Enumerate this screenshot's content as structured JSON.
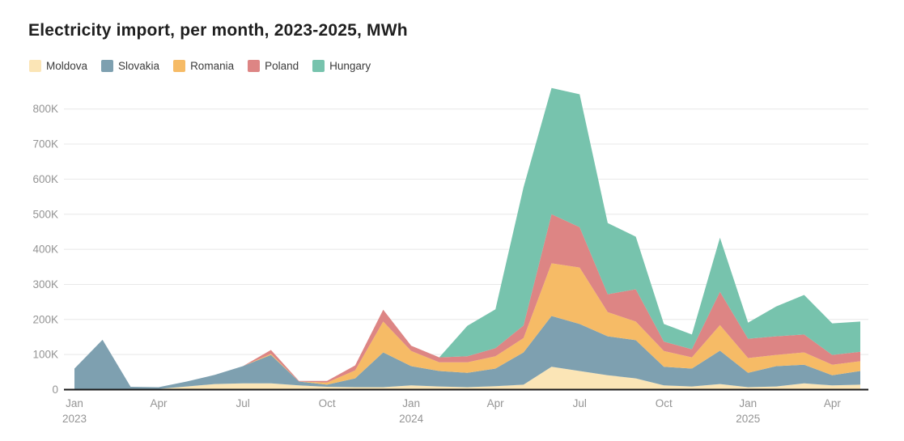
{
  "page": {
    "title": "Electricity import, per month, 2023-2025, MWh"
  },
  "legend": {
    "items": [
      {
        "label": "Moldova",
        "color": "#FBE5B6"
      },
      {
        "label": "Slovakia",
        "color": "#7EA0B0"
      },
      {
        "label": "Romania",
        "color": "#F6BB66"
      },
      {
        "label": "Poland",
        "color": "#DD8584"
      },
      {
        "label": "Hungary",
        "color": "#77C3AD"
      }
    ]
  },
  "chart_data": {
    "type": "area",
    "stacked": true,
    "title": "Electricity import, per month, 2023-2025, MWh",
    "unit": "MWh",
    "values_unit": "thousand MWh (K)",
    "xlabel": "",
    "ylabel": "",
    "grid": true,
    "legend_position": "top-left",
    "ylim": [
      0,
      800
    ],
    "x": [
      "Jan 2023",
      "Feb 2023",
      "Mar 2023",
      "Apr 2023",
      "May 2023",
      "Jun 2023",
      "Jul 2023",
      "Aug 2023",
      "Sep 2023",
      "Oct 2023",
      "Nov 2023",
      "Dec 2023",
      "Jan 2024",
      "Feb 2024",
      "Mar 2024",
      "Apr 2024",
      "May 2024",
      "Jun 2024",
      "Jul 2024",
      "Aug 2024",
      "Sep 2024",
      "Oct 2024",
      "Nov 2024",
      "Dec 2024",
      "Jan 2025",
      "Feb 2025",
      "Mar 2025",
      "Apr 2025",
      "May 2025"
    ],
    "x_ticks": [
      {
        "i": 0,
        "month": "Jan",
        "year": "2023"
      },
      {
        "i": 3,
        "month": "Apr"
      },
      {
        "i": 6,
        "month": "Jul"
      },
      {
        "i": 9,
        "month": "Oct"
      },
      {
        "i": 12,
        "month": "Jan",
        "year": "2024"
      },
      {
        "i": 15,
        "month": "Apr"
      },
      {
        "i": 18,
        "month": "Jul"
      },
      {
        "i": 21,
        "month": "Oct"
      },
      {
        "i": 24,
        "month": "Jan",
        "year": "2025"
      },
      {
        "i": 27,
        "month": "Apr"
      }
    ],
    "y_ticks": [
      {
        "v": 0,
        "label": "0"
      },
      {
        "v": 100,
        "label": "100K"
      },
      {
        "v": 200,
        "label": "200K"
      },
      {
        "v": 300,
        "label": "300K"
      },
      {
        "v": 400,
        "label": "400K"
      },
      {
        "v": 500,
        "label": "500K"
      },
      {
        "v": 600,
        "label": "600K"
      },
      {
        "v": 700,
        "label": "700K"
      },
      {
        "v": 800,
        "label": "800K"
      }
    ],
    "series": [
      {
        "name": "Moldova",
        "color": "#FBE5B6",
        "values": [
          1,
          2,
          2,
          2,
          9,
          16,
          18,
          18,
          12,
          8,
          7,
          7,
          12,
          9,
          7,
          10,
          14,
          65,
          53,
          41,
          32,
          12,
          9,
          16,
          7,
          9,
          18,
          12,
          14
        ]
      },
      {
        "name": "Slovakia",
        "color": "#7EA0B0",
        "values": [
          59,
          140,
          6,
          5,
          14,
          26,
          49,
          81,
          11,
          6,
          25,
          99,
          55,
          44,
          41,
          50,
          92,
          145,
          134,
          111,
          109,
          53,
          51,
          95,
          41,
          58,
          53,
          29,
          39
        ]
      },
      {
        "name": "Romania",
        "color": "#F6BB66",
        "values": [
          0,
          0,
          0,
          0,
          0,
          0,
          0,
          3,
          0,
          6,
          23,
          88,
          43,
          25,
          30,
          35,
          41,
          150,
          161,
          69,
          53,
          45,
          32,
          73,
          42,
          32,
          35,
          30,
          28
        ]
      },
      {
        "name": "Poland",
        "color": "#DD8584",
        "values": [
          0,
          0,
          0,
          0,
          0,
          0,
          0,
          11,
          2,
          5,
          14,
          34,
          15,
          14,
          17,
          23,
          36,
          140,
          115,
          51,
          92,
          27,
          23,
          95,
          55,
          53,
          51,
          28,
          27
        ]
      },
      {
        "name": "Hungary",
        "color": "#77C3AD",
        "values": [
          0,
          0,
          0,
          0,
          0,
          0,
          0,
          0,
          0,
          0,
          0,
          0,
          0,
          0,
          87,
          111,
          394,
          360,
          379,
          203,
          150,
          50,
          42,
          154,
          46,
          85,
          113,
          90,
          86
        ]
      }
    ],
    "style": {
      "grid_color": "#e8e8e8",
      "axis_color": "#1a1a1a",
      "tick_label_color": "#949494",
      "title_color": "#1f1f1f"
    }
  }
}
